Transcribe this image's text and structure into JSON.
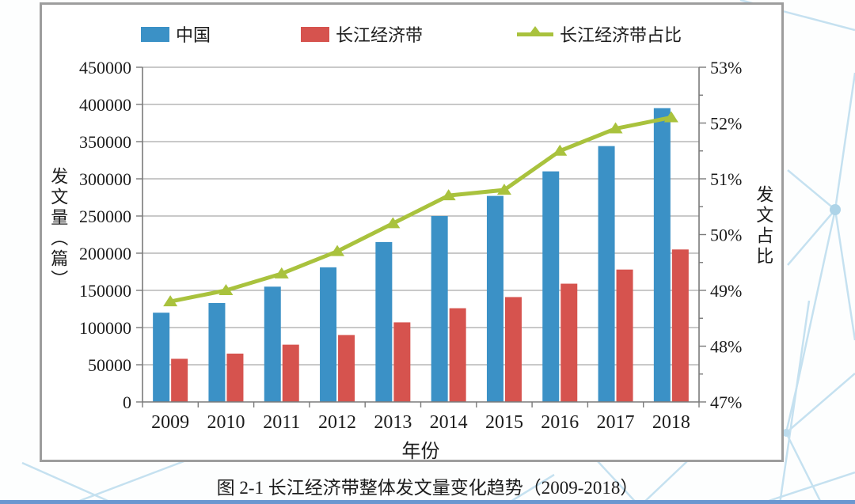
{
  "caption": "图 2-1 长江经济带整体发文量变化趋势（2009-2018）",
  "colors": {
    "bar_china": "#3b91c6",
    "bar_belt": "#d6534e",
    "line_ratio": "#a9c23d",
    "gridline": "#a9a9a9",
    "axis": "#7a7a7a",
    "frame_border": "#9d9d9d",
    "network_pattern": "#bcdcee",
    "bottom_strip": "#6b97d0"
  },
  "legend": {
    "items": [
      {
        "label": "中国",
        "type": "bar",
        "color": "#3b91c6"
      },
      {
        "label": "长江经济带",
        "type": "bar",
        "color": "#d6534e"
      },
      {
        "label": "长江经济带占比",
        "type": "line",
        "color": "#a9c23d"
      }
    ]
  },
  "chart_data": {
    "type": "combo",
    "title": "",
    "categories": [
      "2009",
      "2010",
      "2011",
      "2012",
      "2013",
      "2014",
      "2015",
      "2016",
      "2017",
      "2018"
    ],
    "series": [
      {
        "name": "中国",
        "type": "bar",
        "axis": "left",
        "color": "#3b91c6",
        "values": [
          120000,
          133000,
          155000,
          181000,
          215000,
          250000,
          277000,
          310000,
          344000,
          395000
        ]
      },
      {
        "name": "长江经济带",
        "type": "bar",
        "axis": "left",
        "color": "#d6534e",
        "values": [
          58000,
          65000,
          77000,
          90000,
          107000,
          126000,
          141000,
          159000,
          178000,
          205000
        ]
      },
      {
        "name": "长江经济带占比",
        "type": "line",
        "axis": "right",
        "color": "#a9c23d",
        "values": [
          48.8,
          49.0,
          49.3,
          49.7,
          50.2,
          50.7,
          50.8,
          51.5,
          51.9,
          52.1
        ]
      }
    ],
    "left_axis": {
      "title": "发文量（篇）",
      "min": 0,
      "max": 450000,
      "step": 50000,
      "tick_labels": [
        "0",
        "50000",
        "100000",
        "150000",
        "200000",
        "250000",
        "300000",
        "350000",
        "400000",
        "450000"
      ]
    },
    "right_axis": {
      "title": "发文占比",
      "min": 47,
      "max": 53,
      "step": 1,
      "minor_step": 0.5,
      "tick_labels": [
        "47%",
        "48%",
        "49%",
        "50%",
        "51%",
        "52%",
        "53%"
      ]
    },
    "x_axis": {
      "title": "年份"
    },
    "grid": true,
    "legend_position": "top"
  }
}
